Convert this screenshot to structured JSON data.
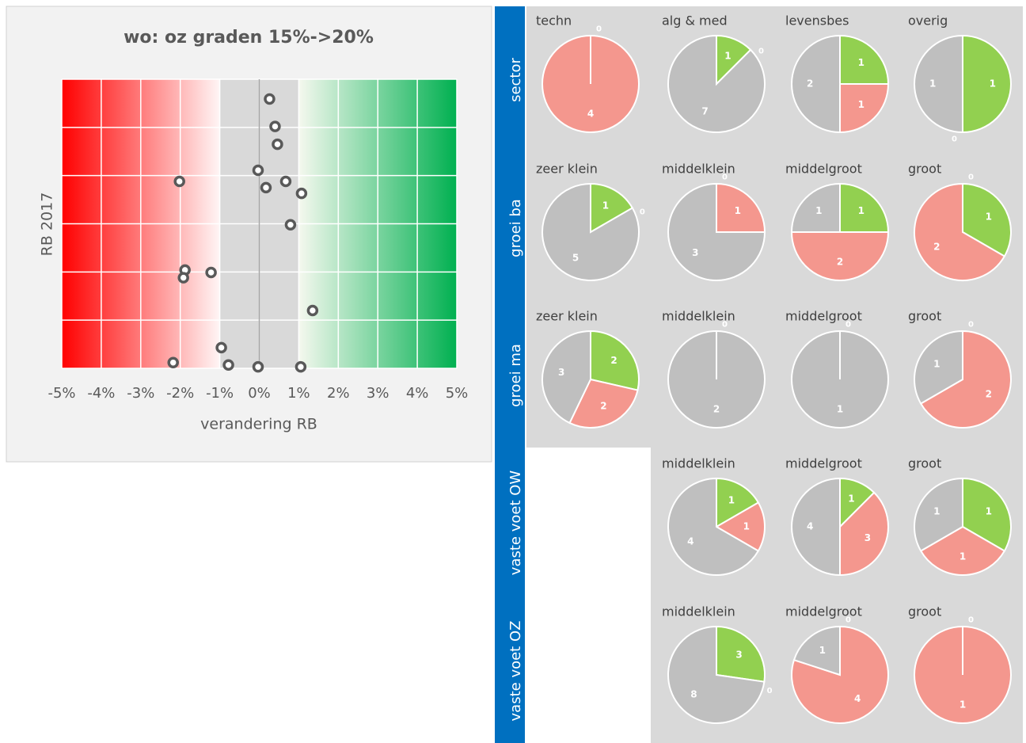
{
  "chart_data": [
    {
      "type": "scatter",
      "title": "wo: oz graden 15%->20%",
      "x_label": "verandering RB",
      "y_label": "RB 2017",
      "x": [
        0.26,
        0.4,
        0.46,
        -0.03,
        -2.02,
        0.67,
        0.17,
        1.07,
        0.79,
        -1.88,
        -1.92,
        -1.22,
        1.35,
        -0.96,
        -2.18,
        -0.78,
        -0.03,
        1.05
      ],
      "y": [
        5.59,
        5.02,
        4.65,
        4.11,
        3.88,
        3.88,
        3.75,
        3.63,
        2.98,
        2.04,
        1.88,
        1.99,
        1.2,
        0.43,
        0.12,
        0.07,
        0.03,
        0.03
      ],
      "xlim": [
        -5,
        5
      ],
      "xticks": [
        {
          "value": -5,
          "label": "-5%"
        },
        {
          "value": -4,
          "label": "-4%"
        },
        {
          "value": -3,
          "label": "-3%"
        },
        {
          "value": -2,
          "label": "-2%"
        },
        {
          "value": -1,
          "label": "-1%"
        },
        {
          "value": 0,
          "label": "0%"
        },
        {
          "value": 1,
          "label": "1%"
        },
        {
          "value": 2,
          "label": "2%"
        },
        {
          "value": 3,
          "label": "3%"
        },
        {
          "value": 4,
          "label": "4%"
        },
        {
          "value": 5,
          "label": "5%"
        }
      ],
      "ylim": [
        0,
        6
      ],
      "yticks": [
        0,
        1,
        2,
        3,
        4,
        5,
        6
      ],
      "ytick_labels": false,
      "grid": true,
      "color": "#595959"
    },
    {
      "type": "pie_grid",
      "slice_colors": [
        "#92d050",
        "#f4978e",
        "#bfbfbf"
      ],
      "rows": [
        {
          "name": "sector",
          "pies": [
            {
              "title": "techn",
              "values": [
                0,
                4,
                0
              ]
            },
            {
              "title": "alg & med",
              "values": [
                1,
                0,
                7
              ]
            },
            {
              "title": "levensbes",
              "values": [
                1,
                1,
                2
              ]
            },
            {
              "title": "overig",
              "values": [
                1,
                0,
                1
              ]
            }
          ]
        },
        {
          "name": "groei ba",
          "pies": [
            {
              "title": "zeer klein",
              "values": [
                1,
                0,
                5
              ]
            },
            {
              "title": "middelklein",
              "values": [
                0,
                1,
                3
              ]
            },
            {
              "title": "middelgroot",
              "values": [
                1,
                2,
                1
              ]
            },
            {
              "title": "groot",
              "values": [
                1,
                2,
                0
              ]
            }
          ]
        },
        {
          "name": "groei ma",
          "pies": [
            {
              "title": "zeer klein",
              "values": [
                2,
                2,
                3
              ]
            },
            {
              "title": "middelklein",
              "values": [
                0,
                0,
                2
              ]
            },
            {
              "title": "middelgroot",
              "values": [
                0,
                0,
                1
              ]
            },
            {
              "title": "groot",
              "values": [
                0,
                2,
                1
              ]
            }
          ]
        },
        {
          "name": "vaste voet OW",
          "pies": [
            null,
            {
              "title": "middelklein",
              "values": [
                1,
                1,
                4
              ]
            },
            {
              "title": "middelgroot",
              "values": [
                1,
                3,
                4
              ]
            },
            {
              "title": "groot",
              "values": [
                1,
                1,
                1
              ]
            }
          ]
        },
        {
          "name": "vaste voet OZ",
          "pies": [
            null,
            {
              "title": "middelklein",
              "values": [
                3,
                0,
                8
              ]
            },
            {
              "title": "middelgroot",
              "values": [
                0,
                4,
                1
              ]
            },
            {
              "title": "groot",
              "values": [
                0,
                1,
                0
              ]
            }
          ]
        }
      ]
    }
  ]
}
